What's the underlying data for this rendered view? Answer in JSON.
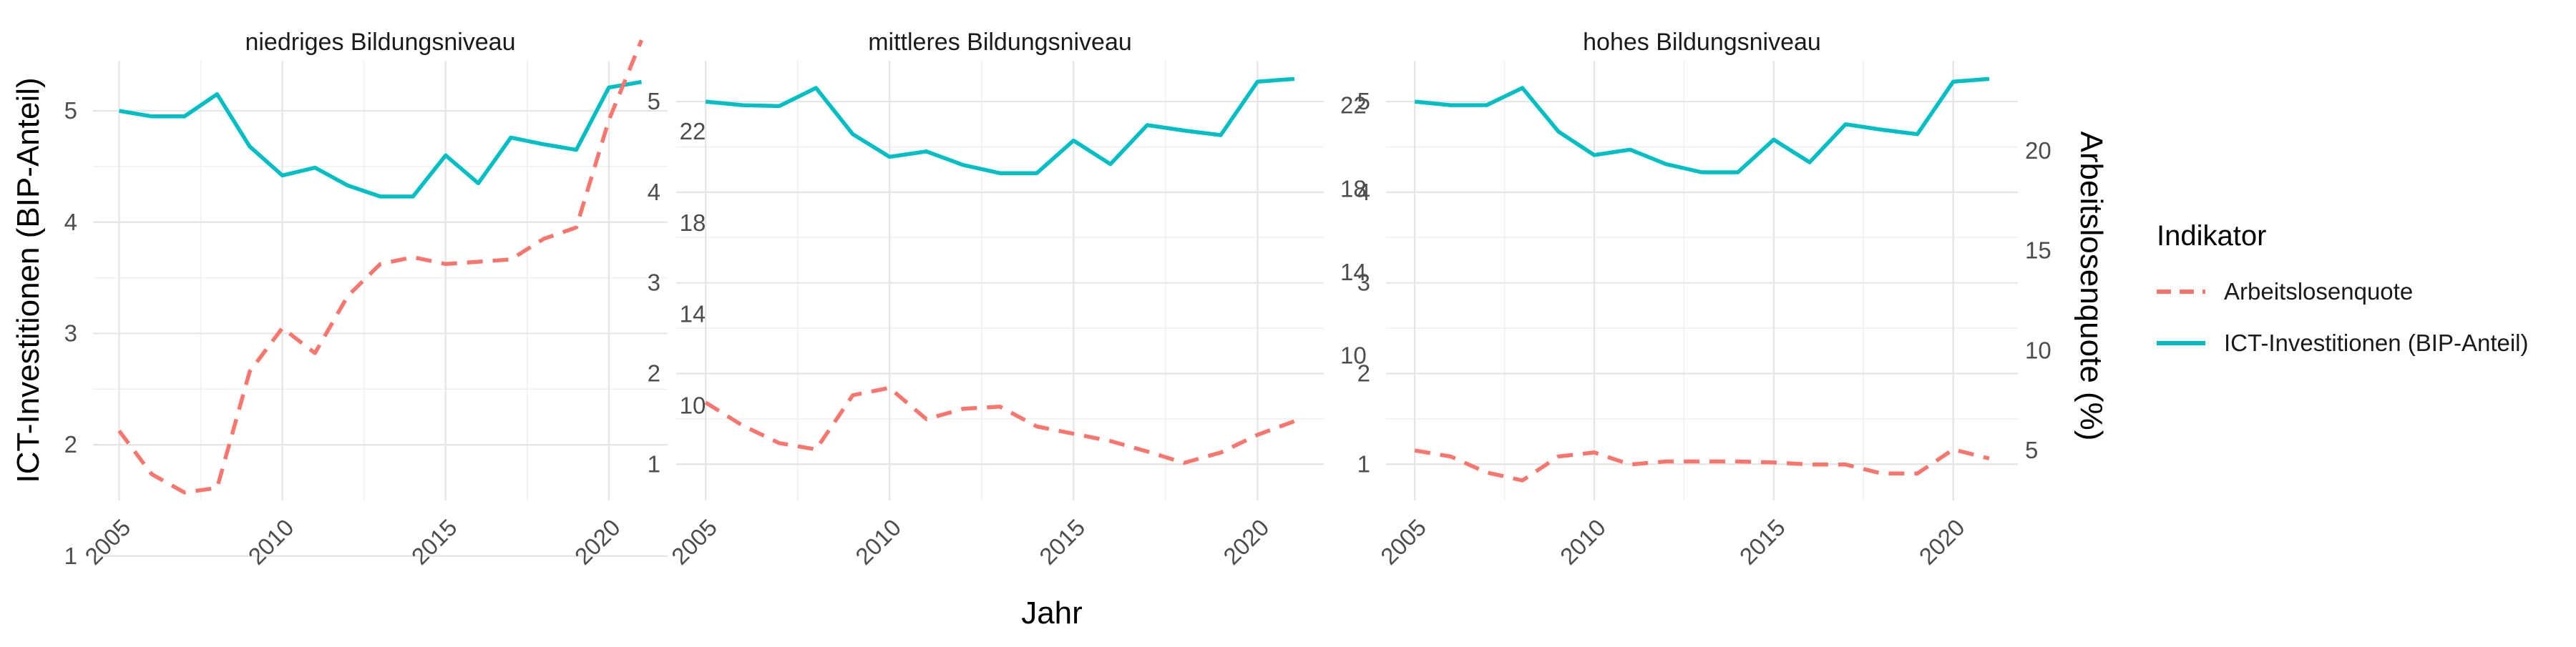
{
  "chart_data": {
    "type": "line",
    "facets": [
      "niedriges Bildungsniveau",
      "mittleres Bildungsniveau",
      "hohes Bildungsniveau"
    ],
    "xlabel": "Jahr",
    "ylabel_left": "ICT-Investitionen (BIP-Anteil)",
    "ylabel_right": "Arbeitslosenquote (%)",
    "x": [
      2005,
      2006,
      2007,
      2008,
      2009,
      2010,
      2011,
      2012,
      2013,
      2014,
      2015,
      2016,
      2017,
      2018,
      2019,
      2020,
      2021
    ],
    "x_ticks": [
      "2005",
      "2010",
      "2015",
      "2020"
    ],
    "xlim": [
      2004.2,
      2021.8
    ],
    "grid": true,
    "legend": {
      "title": "Indikator",
      "position": "right",
      "entries": [
        {
          "label": "Arbeitslosenquote",
          "color": "#F8766D",
          "dash": "dashed"
        },
        {
          "label": "ICT-Investitionen (BIP-Anteil)",
          "color": "#00BFC4",
          "dash": "solid"
        }
      ]
    },
    "panels": [
      {
        "title": "niedriges Bildungsniveau",
        "left_axis": {
          "ticks": [
            "1",
            "2",
            "3",
            "4",
            "5"
          ],
          "values": [
            1,
            2,
            3,
            4,
            5
          ],
          "ylim": [
            1.5,
            5.45
          ]
        },
        "right_axis": {
          "ticks": [
            "10",
            "14",
            "18",
            "22"
          ],
          "values": [
            10,
            14,
            18,
            22
          ],
          "ylim": [
            5.85,
            25.1
          ]
        },
        "series": [
          {
            "name": "ICT-Investitionen (BIP-Anteil)",
            "axis": "left",
            "color": "#00BFC4",
            "values": [
              5.0,
              4.95,
              4.95,
              5.15,
              4.68,
              4.42,
              4.49,
              4.33,
              4.23,
              4.23,
              4.6,
              4.35,
              4.76,
              4.7,
              4.65,
              5.21,
              5.26
            ]
          },
          {
            "name": "Arbeitslosenquote",
            "axis": "right",
            "color": "#F8766D",
            "values": [
              8.9,
              7.0,
              6.2,
              6.4,
              11.5,
              13.4,
              12.3,
              14.8,
              16.2,
              16.5,
              16.2,
              16.3,
              16.4,
              17.3,
              17.8,
              22.5,
              26.0
            ]
          }
        ]
      },
      {
        "title": "mittleres Bildungsniveau",
        "left_axis": {
          "ticks": [
            "1",
            "2",
            "3",
            "4",
            "5"
          ],
          "values": [
            1,
            2,
            3,
            4,
            5
          ],
          "ylim": [
            0.6,
            5.45
          ]
        },
        "right_axis": {
          "ticks": [
            "22",
            "18",
            "14",
            "10"
          ],
          "values": [
            22,
            18,
            14,
            10
          ],
          "ylim": [
            3.05,
            24.15
          ]
        },
        "series": [
          {
            "name": "ICT-Investitionen (BIP-Anteil)",
            "axis": "left",
            "color": "#00BFC4",
            "values": [
              5.0,
              4.96,
              4.95,
              5.15,
              4.64,
              4.39,
              4.45,
              4.3,
              4.21,
              4.21,
              4.57,
              4.31,
              4.74,
              4.68,
              4.63,
              5.22,
              5.25
            ]
          },
          {
            "name": "Arbeitslosenquote",
            "axis": "right",
            "color": "#F8766D",
            "values": [
              7.75,
              6.65,
              5.8,
              5.5,
              8.1,
              8.45,
              6.95,
              7.45,
              7.55,
              6.6,
              6.25,
              5.9,
              5.4,
              4.85,
              5.35,
              6.2,
              6.85
            ]
          }
        ]
      },
      {
        "title": "hohes Bildungsniveau",
        "left_axis": {
          "ticks": [
            "1",
            "2",
            "3",
            "4",
            "5"
          ],
          "values": [
            1,
            2,
            3,
            4,
            5
          ],
          "ylim": [
            0.6,
            5.45
          ]
        },
        "right_axis": {
          "ticks": [
            "5",
            "10",
            "15",
            "20"
          ],
          "values": [
            5,
            10,
            15,
            20
          ],
          "ylim": [
            2.5,
            24.5
          ]
        },
        "series": [
          {
            "name": "ICT-Investitionen (BIP-Anteil)",
            "axis": "left",
            "color": "#00BFC4",
            "values": [
              5.0,
              4.96,
              4.96,
              5.15,
              4.67,
              4.41,
              4.47,
              4.31,
              4.22,
              4.22,
              4.58,
              4.33,
              4.75,
              4.69,
              4.64,
              5.22,
              5.25
            ]
          },
          {
            "name": "Arbeitslosenquote",
            "axis": "right",
            "color": "#F8766D",
            "values": [
              5.0,
              4.7,
              3.9,
              3.5,
              4.7,
              4.9,
              4.3,
              4.45,
              4.45,
              4.45,
              4.4,
              4.3,
              4.3,
              3.85,
              3.85,
              5.05,
              4.6
            ]
          }
        ]
      }
    ]
  }
}
